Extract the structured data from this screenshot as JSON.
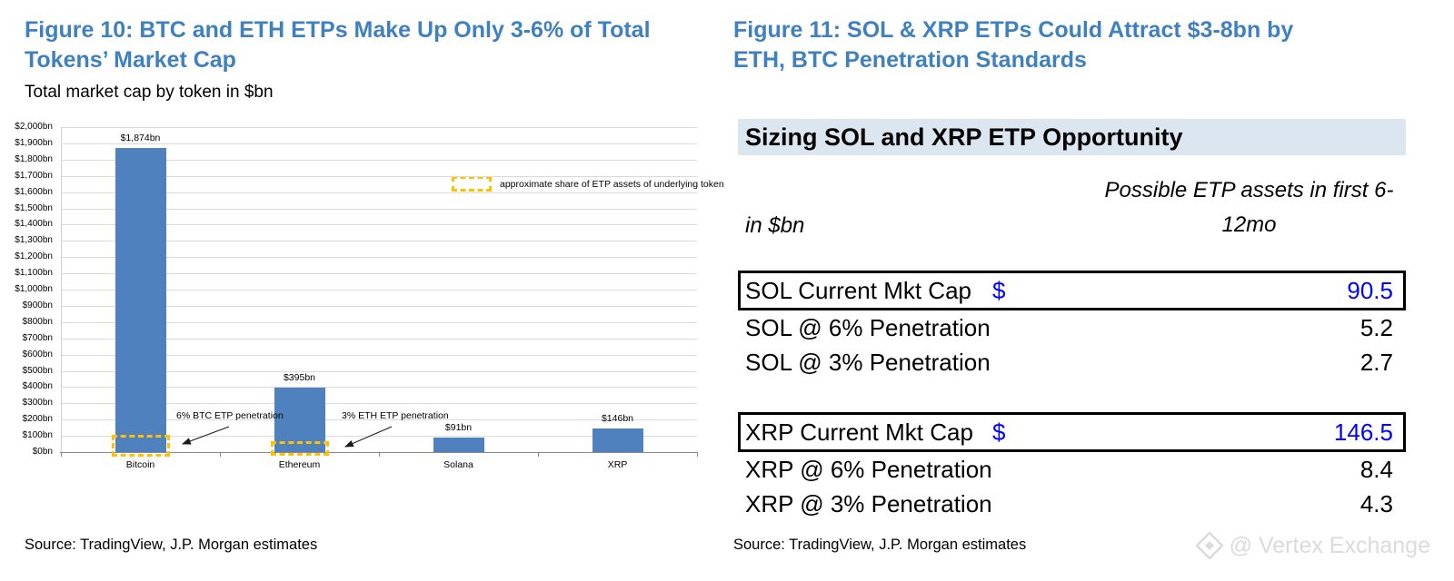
{
  "left_panel": {
    "title": "Figure 10: BTC and ETH ETPs Make Up Only 3-6% of Total Tokens’ Market Cap",
    "subtitle": "Total market cap by token in $bn",
    "source": "Source: TradingView, J.P. Morgan estimates"
  },
  "right_panel": {
    "title": "Figure 11: SOL & XRP ETPs Could Attract $3-8bn by ETH, BTC Penetration Standards",
    "source": "Source: TradingView, J.P. Morgan estimates"
  },
  "watermark": {
    "icon": "vertex-exchange-diamond-logo",
    "text": "@ Vertex Exchange"
  },
  "colors": {
    "figure_title_blue": "#3F80BF",
    "bar_blue": "#4E81BD",
    "etp_overlay_gold": "#FFC000",
    "table_title_bg": "#DCE6F1",
    "highlight_value_blue": "#0000FF",
    "gridline_gray": "#DBDBDB"
  },
  "chart_data": [
    {
      "type": "bar",
      "title": "Total market cap by token in $bn",
      "categories": [
        "Bitcoin",
        "Ethereum",
        "Solana",
        "XRP"
      ],
      "values": [
        1874,
        395,
        91,
        146
      ],
      "bar_labels": [
        "$1,874bn",
        "$395bn",
        "$91bn",
        "$146bn"
      ],
      "xlabel": "",
      "ylabel": "$bn",
      "ylim": [
        0,
        2000
      ],
      "ytick_step": 100,
      "ytick_format": "$#,##0bn",
      "grid": true,
      "bar_color": "#4E81BD",
      "overlay_color": "#FFC000",
      "legend": {
        "label": "approximate share of ETP assets of underlying token",
        "swatch": "dashed-gold-box",
        "position": "upper-right"
      },
      "annotations": [
        {
          "text": "6% BTC ETP penetration",
          "target": "Bitcoin",
          "share_pct": 6
        },
        {
          "text": "3% ETH ETP penetration",
          "target": "Ethereum",
          "share_pct": 3
        }
      ]
    },
    {
      "type": "table",
      "title": "Sizing SOL and XRP ETP Opportunity",
      "columns": [
        "in $bn",
        "Possible ETP assets in first 6-12mo"
      ],
      "groups": [
        {
          "rows": [
            {
              "label": "SOL Current Mkt Cap",
              "currency": "$",
              "value": 90.5,
              "highlight": true
            },
            {
              "label": "SOL @ 6% Penetration",
              "value": 5.2
            },
            {
              "label": "SOL @ 3% Penetration",
              "value": 2.7
            }
          ]
        },
        {
          "rows": [
            {
              "label": "XRP Current Mkt Cap",
              "currency": "$",
              "value": 146.5,
              "highlight": true
            },
            {
              "label": "XRP @ 6% Penetration",
              "value": 8.4
            },
            {
              "label": "XRP @ 3% Penetration",
              "value": 4.3
            }
          ]
        }
      ]
    }
  ]
}
